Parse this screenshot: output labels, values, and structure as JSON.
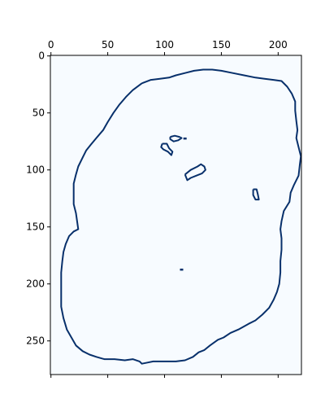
{
  "chart_data": {
    "type": "heatmap",
    "title": "",
    "xlabel": "",
    "ylabel": "",
    "colormap": "Blues",
    "colors": {
      "background": "#f7fbff",
      "contour": "#08306b",
      "axis": "#000000"
    },
    "image_size": [
      221,
      280
    ],
    "xlim": [
      -0.5,
      220.5
    ],
    "ylim": [
      279.5,
      -0.5
    ],
    "x_ticks": [
      0,
      50,
      100,
      150,
      200
    ],
    "x_tick_labels": [
      "0",
      "50",
      "100",
      "150",
      "200"
    ],
    "y_ticks": [
      0,
      50,
      100,
      150,
      200,
      250
    ],
    "y_tick_labels": [
      "0",
      "50",
      "100",
      "150",
      "200",
      "250"
    ],
    "x_ticks_bottom": [
      0,
      50,
      100,
      150,
      200
    ],
    "grid": false,
    "outline": [
      [
        80,
        24
      ],
      [
        88,
        21
      ],
      [
        96,
        20
      ],
      [
        104,
        19
      ],
      [
        110,
        17
      ],
      [
        118,
        15
      ],
      [
        126,
        13
      ],
      [
        134,
        12
      ],
      [
        142,
        12
      ],
      [
        150,
        13
      ],
      [
        160,
        15
      ],
      [
        170,
        17
      ],
      [
        180,
        19
      ],
      [
        188,
        20
      ],
      [
        196,
        21
      ],
      [
        203,
        22
      ],
      [
        208,
        27
      ],
      [
        212,
        33
      ],
      [
        215,
        40
      ],
      [
        215,
        48
      ],
      [
        216,
        57
      ],
      [
        217,
        65
      ],
      [
        216,
        72
      ],
      [
        218,
        80
      ],
      [
        220,
        88
      ],
      [
        219,
        96
      ],
      [
        218,
        105
      ],
      [
        214,
        113
      ],
      [
        211,
        120
      ],
      [
        210,
        128
      ],
      [
        205,
        136
      ],
      [
        203,
        145
      ],
      [
        202,
        152
      ],
      [
        203,
        160
      ],
      [
        203,
        170
      ],
      [
        202,
        180
      ],
      [
        202,
        190
      ],
      [
        201,
        200
      ],
      [
        199,
        207
      ],
      [
        196,
        214
      ],
      [
        192,
        221
      ],
      [
        186,
        227
      ],
      [
        180,
        232
      ],
      [
        174,
        235
      ],
      [
        165,
        240
      ],
      [
        158,
        243
      ],
      [
        152,
        247
      ],
      [
        147,
        249
      ],
      [
        140,
        254
      ],
      [
        135,
        258
      ],
      [
        130,
        260
      ],
      [
        125,
        264
      ],
      [
        118,
        267
      ],
      [
        110,
        268
      ],
      [
        104,
        268
      ],
      [
        98,
        268
      ],
      [
        90,
        268
      ],
      [
        85,
        269
      ],
      [
        80,
        270
      ],
      [
        78,
        268
      ],
      [
        72,
        266
      ],
      [
        65,
        267
      ],
      [
        56,
        266
      ],
      [
        47,
        266
      ],
      [
        40,
        264
      ],
      [
        34,
        262
      ],
      [
        28,
        259
      ],
      [
        22,
        254
      ],
      [
        18,
        247
      ],
      [
        14,
        240
      ],
      [
        11,
        230
      ],
      [
        9,
        220
      ],
      [
        9,
        210
      ],
      [
        9,
        200
      ],
      [
        9,
        190
      ],
      [
        10,
        180
      ],
      [
        11,
        172
      ],
      [
        13,
        165
      ],
      [
        16,
        158
      ],
      [
        20,
        154
      ],
      [
        24,
        152
      ],
      [
        23,
        145
      ],
      [
        22,
        138
      ],
      [
        20,
        130
      ],
      [
        20,
        122
      ],
      [
        20,
        112
      ],
      [
        22,
        104
      ],
      [
        24,
        97
      ],
      [
        28,
        89
      ],
      [
        31,
        83
      ],
      [
        35,
        78
      ],
      [
        40,
        72
      ],
      [
        46,
        65
      ],
      [
        50,
        58
      ],
      [
        55,
        50
      ],
      [
        60,
        43
      ],
      [
        66,
        36
      ],
      [
        72,
        30
      ],
      [
        80,
        24
      ]
    ],
    "islands": [
      [
        [
          105,
          71
        ],
        [
          109,
          70
        ],
        [
          113,
          71
        ],
        [
          115,
          72
        ],
        [
          112,
          74
        ],
        [
          108,
          75
        ],
        [
          105,
          73
        ],
        [
          105,
          71
        ]
      ],
      [
        [
          98,
          77
        ],
        [
          102,
          77
        ],
        [
          104,
          81
        ],
        [
          107,
          84
        ],
        [
          106,
          87
        ],
        [
          103,
          84
        ],
        [
          99,
          82
        ],
        [
          97,
          80
        ],
        [
          98,
          77
        ]
      ],
      [
        [
          118,
          104
        ],
        [
          123,
          100
        ],
        [
          129,
          97
        ],
        [
          132,
          95
        ],
        [
          135,
          97
        ],
        [
          136,
          100
        ],
        [
          133,
          103
        ],
        [
          128,
          105
        ],
        [
          123,
          107
        ],
        [
          120,
          109
        ],
        [
          118,
          104
        ]
      ],
      [
        [
          178,
          117
        ],
        [
          181,
          117
        ],
        [
          182,
          121
        ],
        [
          183,
          126
        ],
        [
          180,
          126
        ],
        [
          178,
          122
        ],
        [
          178,
          117
        ]
      ]
    ],
    "dots": [
      [
        118,
        73
      ],
      [
        115,
        188
      ]
    ]
  }
}
